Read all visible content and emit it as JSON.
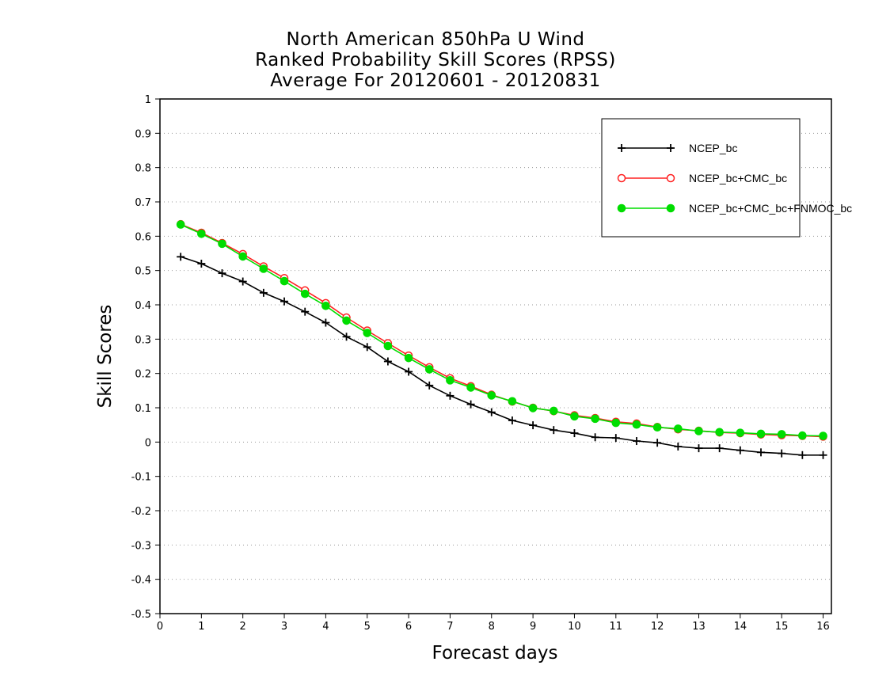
{
  "chart_data": {
    "type": "line",
    "title": "North American 850hPa U Wind",
    "subtitle": "Ranked Probability Skill Scores (RPSS)",
    "subtitle2": "Average For 20120601 - 20120831",
    "xlabel": "Forecast days",
    "ylabel": "Skill Scores",
    "xlim": [
      0,
      16.2
    ],
    "ylim": [
      -0.5,
      1
    ],
    "xticks": [
      "0",
      "1",
      "2",
      "3",
      "4",
      "5",
      "6",
      "7",
      "8",
      "9",
      "10",
      "11",
      "12",
      "13",
      "14",
      "15",
      "16"
    ],
    "yticks": [
      "1",
      "0.9",
      "0.8",
      "0.7",
      "0.6",
      "0.5",
      "0.4",
      "0.3",
      "0.2",
      "0.1",
      "0",
      "-0.1",
      "-0.2",
      "-0.3",
      "-0.4",
      "-0.5"
    ],
    "ytick_values": [
      1,
      0.9,
      0.8,
      0.7,
      0.6,
      0.5,
      0.4,
      0.3,
      0.2,
      0.1,
      0,
      -0.1,
      -0.2,
      -0.3,
      -0.4,
      -0.5
    ],
    "grid": true,
    "legend_position": "top-right",
    "x": [
      0.5,
      1,
      1.5,
      2,
      2.5,
      3,
      3.5,
      4,
      4.5,
      5,
      5.5,
      6,
      6.5,
      7,
      7.5,
      8,
      8.5,
      9,
      9.5,
      10,
      10.5,
      11,
      11.5,
      12,
      12.5,
      13,
      13.5,
      14,
      14.5,
      15,
      15.5,
      16
    ],
    "series": [
      {
        "name": "NCEP_bc",
        "color": "#000000",
        "marker": "plus",
        "values": [
          0.54,
          0.52,
          0.492,
          0.468,
          0.435,
          0.41,
          0.38,
          0.348,
          0.307,
          0.277,
          0.235,
          0.205,
          0.165,
          0.135,
          0.11,
          0.087,
          0.063,
          0.049,
          0.035,
          0.026,
          0.014,
          0.012,
          0.003,
          -0.002,
          -0.013,
          -0.018,
          -0.018,
          -0.024,
          -0.03,
          -0.033,
          -0.038,
          -0.038
        ]
      },
      {
        "name": "NCEP_bc+CMC_bc",
        "color": "#ff2020",
        "marker": "open-circle",
        "values": [
          0.635,
          0.61,
          0.58,
          0.548,
          0.512,
          0.478,
          0.442,
          0.405,
          0.363,
          0.325,
          0.288,
          0.252,
          0.218,
          0.186,
          0.163,
          0.138,
          0.118,
          0.1,
          0.09,
          0.078,
          0.07,
          0.059,
          0.054,
          0.044,
          0.037,
          0.033,
          0.028,
          0.026,
          0.022,
          0.02,
          0.018,
          0.016
        ]
      },
      {
        "name": "NCEP_bc+CMC_bc+FNMOC_bc",
        "color": "#00dd00",
        "marker": "filled-circle",
        "values": [
          0.634,
          0.607,
          0.578,
          0.541,
          0.505,
          0.469,
          0.432,
          0.397,
          0.354,
          0.318,
          0.28,
          0.245,
          0.212,
          0.18,
          0.159,
          0.136,
          0.119,
          0.099,
          0.091,
          0.075,
          0.068,
          0.056,
          0.051,
          0.043,
          0.039,
          0.032,
          0.029,
          0.027,
          0.024,
          0.023,
          0.019,
          0.018
        ]
      }
    ]
  }
}
